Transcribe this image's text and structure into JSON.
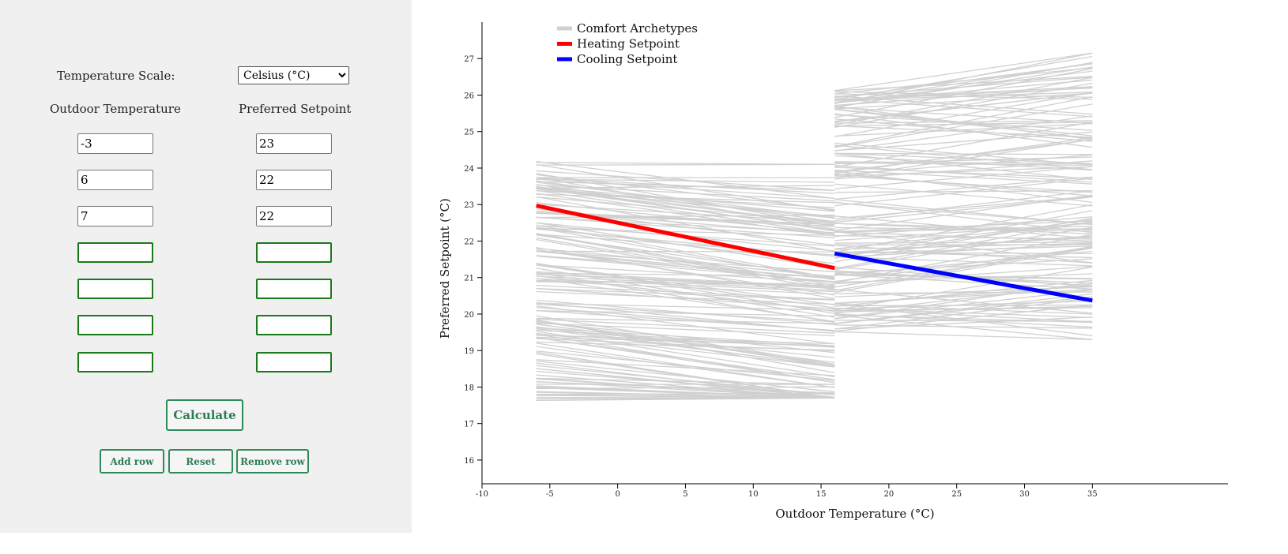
{
  "form": {
    "scale_label": "Temperature Scale:",
    "scale_selected": "Celsius (°C)",
    "outdoor_header": "Outdoor Temperature",
    "setpoint_header": "Preferred Setpoint",
    "rows": [
      {
        "outdoor": "-3",
        "setpoint": "23"
      },
      {
        "outdoor": "6",
        "setpoint": "22"
      },
      {
        "outdoor": "7",
        "setpoint": "22"
      },
      {
        "outdoor": "",
        "setpoint": ""
      },
      {
        "outdoor": "",
        "setpoint": ""
      },
      {
        "outdoor": "",
        "setpoint": ""
      },
      {
        "outdoor": "",
        "setpoint": ""
      }
    ],
    "calculate_label": "Calculate",
    "add_row_label": "Add row",
    "reset_label": "Reset",
    "remove_row_label": "Remove row",
    "accent_color": "#2e8b57"
  },
  "chart_data": {
    "type": "line",
    "xlabel": "Outdoor Temperature (°C)",
    "ylabel": "Preferred Setpoint (°C)",
    "xlim": [
      -10,
      45
    ],
    "ylim": [
      15.35,
      28
    ],
    "xticks": [
      -10,
      -5,
      0,
      5,
      10,
      15,
      20,
      25,
      30,
      35
    ],
    "yticks": [
      16,
      17,
      18,
      19,
      20,
      21,
      22,
      23,
      24,
      25,
      26,
      27
    ],
    "legend_position": "top-left",
    "legend": [
      {
        "label": "Comfort Archetypes",
        "color": "#d0d0d0"
      },
      {
        "label": "Heating Setpoint",
        "color": "#ff0000"
      },
      {
        "label": "Cooling Setpoint",
        "color": "#0000ff"
      }
    ],
    "heating_range": [
      -6,
      16
    ],
    "cooling_range": [
      16,
      35
    ],
    "archetype_count_per_mode": 150,
    "series": [
      {
        "name": "Heating Setpoint",
        "color": "#ff0000",
        "x": [
          -6,
          16
        ],
        "y": [
          22.97,
          21.26
        ]
      },
      {
        "name": "Cooling Setpoint",
        "color": "#0000ff",
        "x": [
          16,
          35
        ],
        "y": [
          21.66,
          20.37
        ]
      }
    ]
  }
}
